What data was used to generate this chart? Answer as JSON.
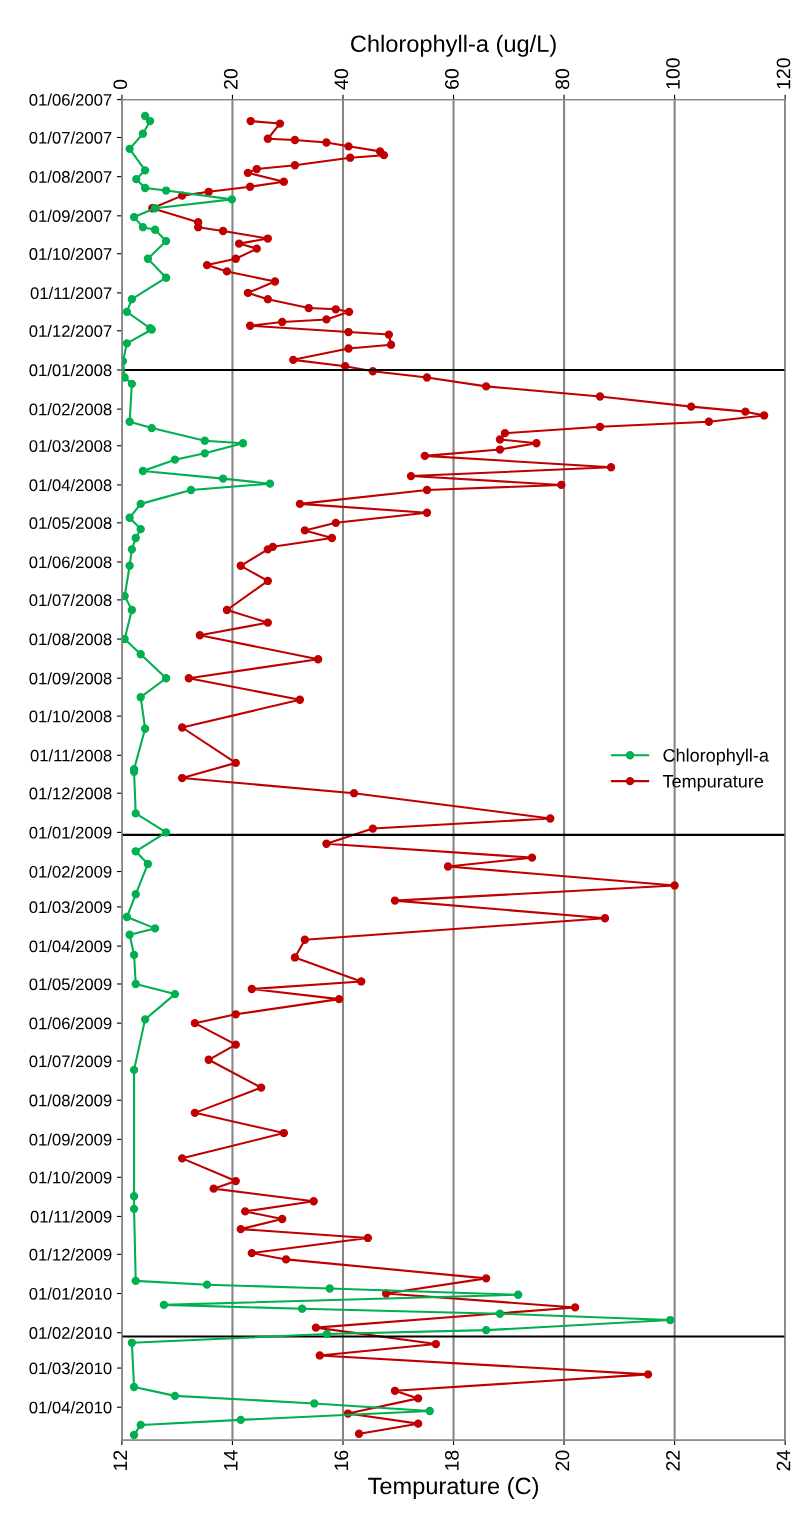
{
  "chart_data": {
    "type": "line",
    "orientation": "horizontal",
    "xlabel": "Tempurature (C)",
    "x2label": "Chlorophyll-a (ug/L)",
    "xlim": [
      12,
      24
    ],
    "xticks": [
      12,
      14,
      16,
      18,
      20,
      22,
      24
    ],
    "x2lim": [
      0,
      120
    ],
    "x2ticks": [
      0,
      20,
      40,
      60,
      80,
      100,
      120
    ],
    "ylim": [
      "2010-04-27",
      "2007-06-01"
    ],
    "yticks": [
      {
        "value": "2007-06-01",
        "label": "01/06/2007"
      },
      {
        "value": "2007-07-01",
        "label": "01/07/2007"
      },
      {
        "value": "2007-08-01",
        "label": "01/08/2007"
      },
      {
        "value": "2007-09-01",
        "label": "01/09/2007"
      },
      {
        "value": "2007-10-01",
        "label": "01/10/2007"
      },
      {
        "value": "2007-11-01",
        "label": "01/11/2007"
      },
      {
        "value": "2007-12-01",
        "label": "01/12/2007"
      },
      {
        "value": "2008-01-01",
        "label": "01/01/2008"
      },
      {
        "value": "2008-02-01",
        "label": "01/02/2008"
      },
      {
        "value": "2008-03-01",
        "label": "01/03/2008"
      },
      {
        "value": "2008-04-01",
        "label": "01/04/2008"
      },
      {
        "value": "2008-05-01",
        "label": "01/05/2008"
      },
      {
        "value": "2008-06-01",
        "label": "01/06/2008"
      },
      {
        "value": "2008-07-01",
        "label": "01/07/2008"
      },
      {
        "value": "2008-08-01",
        "label": "01/08/2008"
      },
      {
        "value": "2008-09-01",
        "label": "01/09/2008"
      },
      {
        "value": "2008-10-01",
        "label": "01/10/2008"
      },
      {
        "value": "2008-11-01",
        "label": "01/11/2008"
      },
      {
        "value": "2008-12-01",
        "label": "01/12/2008"
      },
      {
        "value": "2009-01-01",
        "label": "01/01/2009"
      },
      {
        "value": "2009-02-01",
        "label": "01/02/2009"
      },
      {
        "value": "2009-03-01",
        "label": "01/03/2009"
      },
      {
        "value": "2009-04-01",
        "label": "01/04/2009"
      },
      {
        "value": "2009-05-01",
        "label": "01/05/2009"
      },
      {
        "value": "2009-06-01",
        "label": "01/06/2009"
      },
      {
        "value": "2009-07-01",
        "label": "01/07/2009"
      },
      {
        "value": "2009-08-01",
        "label": "01/08/2009"
      },
      {
        "value": "2009-09-01",
        "label": "01/09/2009"
      },
      {
        "value": "2009-10-01",
        "label": "01/10/2009"
      },
      {
        "value": "2009-11-01",
        "label": "01/11/2009"
      },
      {
        "value": "2009-12-01",
        "label": "01/12/2009"
      },
      {
        "value": "2010-01-01",
        "label": "01/01/2010"
      },
      {
        "value": "2010-02-01",
        "label": "01/02/2010"
      },
      {
        "value": "2010-03-01",
        "label": "01/03/2010"
      },
      {
        "value": "2010-04-01",
        "label": "01/04/2010"
      }
    ],
    "grid": "x",
    "legend": "right",
    "marker": "circle",
    "line_style": "solid",
    "ref_lines": [
      {
        "axis": "y",
        "value": "2008-01-01",
        "color": "#000000"
      },
      {
        "axis": "y",
        "value": "2009-01-03",
        "color": "#000000"
      },
      {
        "axis": "y",
        "value": "2010-02-04",
        "color": "#000000"
      }
    ],
    "series": [
      {
        "name": "Chlorophyll-a",
        "color": "#00b050",
        "axis": "x2",
        "x": [
          "2007-06-14",
          "2007-06-18",
          "2007-06-28",
          "2007-07-10",
          "2007-07-27",
          "2007-08-03",
          "2007-08-10",
          "2007-08-12",
          "2007-08-19",
          "2007-08-26",
          "2007-09-02",
          "2007-09-10",
          "2007-09-12",
          "2007-09-21",
          "2007-10-05",
          "2007-10-20",
          "2007-11-06",
          "2007-11-16",
          "2007-11-29",
          "2007-11-30",
          "2007-12-11",
          "2007-12-25",
          "2008-01-07",
          "2008-01-12",
          "2008-02-11",
          "2008-02-16",
          "2008-02-26",
          "2008-02-28",
          "2008-03-07",
          "2008-03-12",
          "2008-03-21",
          "2008-03-27",
          "2008-03-31",
          "2008-04-05",
          "2008-04-16",
          "2008-04-27",
          "2008-05-06",
          "2008-05-13",
          "2008-05-22",
          "2008-06-04",
          "2008-06-28",
          "2008-07-09",
          "2008-08-01",
          "2008-08-13",
          "2008-09-01",
          "2008-09-16",
          "2008-10-11",
          "2008-11-12",
          "2008-11-14",
          "2008-12-17",
          "2009-01-01",
          "2009-01-16",
          "2009-01-26",
          "2009-02-19",
          "2009-03-09",
          "2009-03-18",
          "2009-03-23",
          "2009-04-08",
          "2009-05-01",
          "2009-05-09",
          "2009-05-29",
          "2009-07-08",
          "2009-10-16",
          "2009-10-26",
          "2009-12-22",
          "2009-12-25",
          "2009-12-28",
          "2010-01-02",
          "2010-01-10",
          "2010-01-13",
          "2010-01-17",
          "2010-01-22",
          "2010-01-30",
          "2010-02-02",
          "2010-02-09",
          "2010-03-16",
          "2010-03-23",
          "2010-03-29",
          "2010-04-04",
          "2010-04-11",
          "2010-04-15",
          "2010-04-23"
        ],
        "values": [
          4.2,
          5.1,
          3.8,
          1.4,
          4.2,
          2.6,
          4.2,
          8.0,
          19.9,
          6.0,
          2.2,
          3.8,
          6.0,
          8.0,
          4.7,
          8.0,
          1.8,
          0.9,
          5.1,
          5.4,
          0.9,
          0.2,
          0.5,
          1.8,
          1.4,
          5.4,
          15.0,
          21.9,
          15.0,
          9.6,
          3.8,
          18.3,
          26.8,
          12.5,
          3.4,
          1.4,
          3.4,
          2.5,
          1.8,
          1.4,
          0.5,
          1.8,
          0.5,
          3.4,
          8.0,
          3.4,
          4.2,
          2.2,
          2.2,
          2.5,
          8.0,
          2.5,
          4.7,
          2.5,
          0.9,
          6.0,
          1.4,
          2.2,
          2.5,
          9.6,
          4.2,
          2.2,
          2.2,
          2.2,
          2.5,
          15.4,
          37.6,
          71.7,
          7.6,
          32.6,
          68.4,
          99.2,
          65.9,
          37.1,
          1.8,
          2.2,
          9.6,
          34.8,
          55.7,
          21.5,
          3.4,
          2.2
        ]
      },
      {
        "name": "Tempurature",
        "color": "#c00000",
        "x": [
          "2007-06-18",
          "2007-06-20",
          "2007-07-02",
          "2007-07-03",
          "2007-07-05",
          "2007-07-08",
          "2007-07-12",
          "2007-07-15",
          "2007-07-17",
          "2007-07-23",
          "2007-07-26",
          "2007-07-29",
          "2007-08-05",
          "2007-08-09",
          "2007-08-13",
          "2007-08-16",
          "2007-08-26",
          "2007-09-06",
          "2007-09-10",
          "2007-09-13",
          "2007-09-19",
          "2007-09-23",
          "2007-09-27",
          "2007-10-05",
          "2007-10-10",
          "2007-10-15",
          "2007-10-23",
          "2007-11-01",
          "2007-11-06",
          "2007-11-13",
          "2007-11-14",
          "2007-11-16",
          "2007-11-22",
          "2007-11-24",
          "2007-11-27",
          "2007-12-02",
          "2007-12-04",
          "2007-12-12",
          "2007-12-15",
          "2007-12-24",
          "2007-12-29",
          "2008-01-02",
          "2008-01-07",
          "2008-01-14",
          "2008-01-22",
          "2008-01-30",
          "2008-02-03",
          "2008-02-06",
          "2008-02-11",
          "2008-02-15",
          "2008-02-20",
          "2008-02-25",
          "2008-02-28",
          "2008-03-04",
          "2008-03-09",
          "2008-03-18",
          "2008-03-25",
          "2008-04-01",
          "2008-04-05",
          "2008-04-16",
          "2008-04-23",
          "2008-05-01",
          "2008-05-07",
          "2008-05-13",
          "2008-05-20",
          "2008-05-22",
          "2008-06-04",
          "2008-06-16",
          "2008-07-09",
          "2008-07-19",
          "2008-07-29",
          "2008-08-17",
          "2008-09-01",
          "2008-09-18",
          "2008-10-10",
          "2008-11-07",
          "2008-11-19",
          "2008-12-01",
          "2008-12-21",
          "2008-12-29",
          "2009-01-10",
          "2009-01-21",
          "2009-01-28",
          "2009-02-12",
          "2009-02-24",
          "2009-03-10",
          "2009-03-27",
          "2009-04-10",
          "2009-04-29",
          "2009-05-05",
          "2009-05-13",
          "2009-05-25",
          "2009-06-01",
          "2009-06-18",
          "2009-06-30",
          "2009-07-22",
          "2009-08-11",
          "2009-08-27",
          "2009-09-16",
          "2009-10-04",
          "2009-10-10",
          "2009-10-20",
          "2009-10-28",
          "2009-11-03",
          "2009-11-11",
          "2009-11-18",
          "2009-11-30",
          "2009-12-05",
          "2009-12-20",
          "2010-01-01",
          "2010-01-12",
          "2010-01-28",
          "2010-02-10",
          "2010-02-19",
          "2010-03-06",
          "2010-03-19",
          "2010-03-25",
          "2010-04-06",
          "2010-04-14",
          "2010-04-22"
        ],
        "values": [
          14.33,
          14.86,
          14.64,
          15.13,
          15.7,
          16.1,
          16.67,
          16.74,
          16.13,
          15.13,
          14.44,
          14.28,
          14.93,
          14.32,
          13.57,
          13.09,
          12.55,
          13.38,
          13.38,
          13.83,
          14.64,
          14.12,
          14.44,
          14.06,
          13.54,
          13.9,
          14.77,
          14.28,
          14.64,
          15.38,
          15.87,
          16.11,
          15.7,
          14.9,
          14.32,
          16.1,
          16.83,
          16.87,
          16.1,
          15.1,
          16.04,
          16.54,
          17.52,
          18.59,
          20.65,
          22.3,
          23.28,
          23.62,
          22.62,
          20.65,
          18.93,
          18.84,
          19.5,
          18.84,
          17.48,
          20.85,
          17.23,
          19.95,
          17.52,
          15.22,
          17.52,
          15.87,
          15.31,
          15.8,
          14.73,
          14.64,
          14.15,
          14.64,
          13.9,
          14.64,
          13.41,
          15.55,
          13.21,
          15.22,
          13.09,
          14.06,
          13.09,
          16.2,
          19.75,
          16.54,
          15.7,
          19.42,
          17.9,
          22.0,
          16.94,
          20.74,
          15.31,
          15.13,
          16.33,
          14.35,
          15.93,
          14.06,
          13.32,
          14.06,
          13.57,
          14.52,
          13.32,
          14.93,
          13.09,
          14.06,
          13.66,
          15.47,
          14.23,
          14.9,
          14.15,
          16.45,
          14.35,
          14.97,
          18.59,
          16.78,
          20.2,
          15.51,
          17.68,
          15.58,
          21.52,
          16.94,
          17.36,
          16.09,
          17.36,
          16.29
        ]
      }
    ]
  }
}
